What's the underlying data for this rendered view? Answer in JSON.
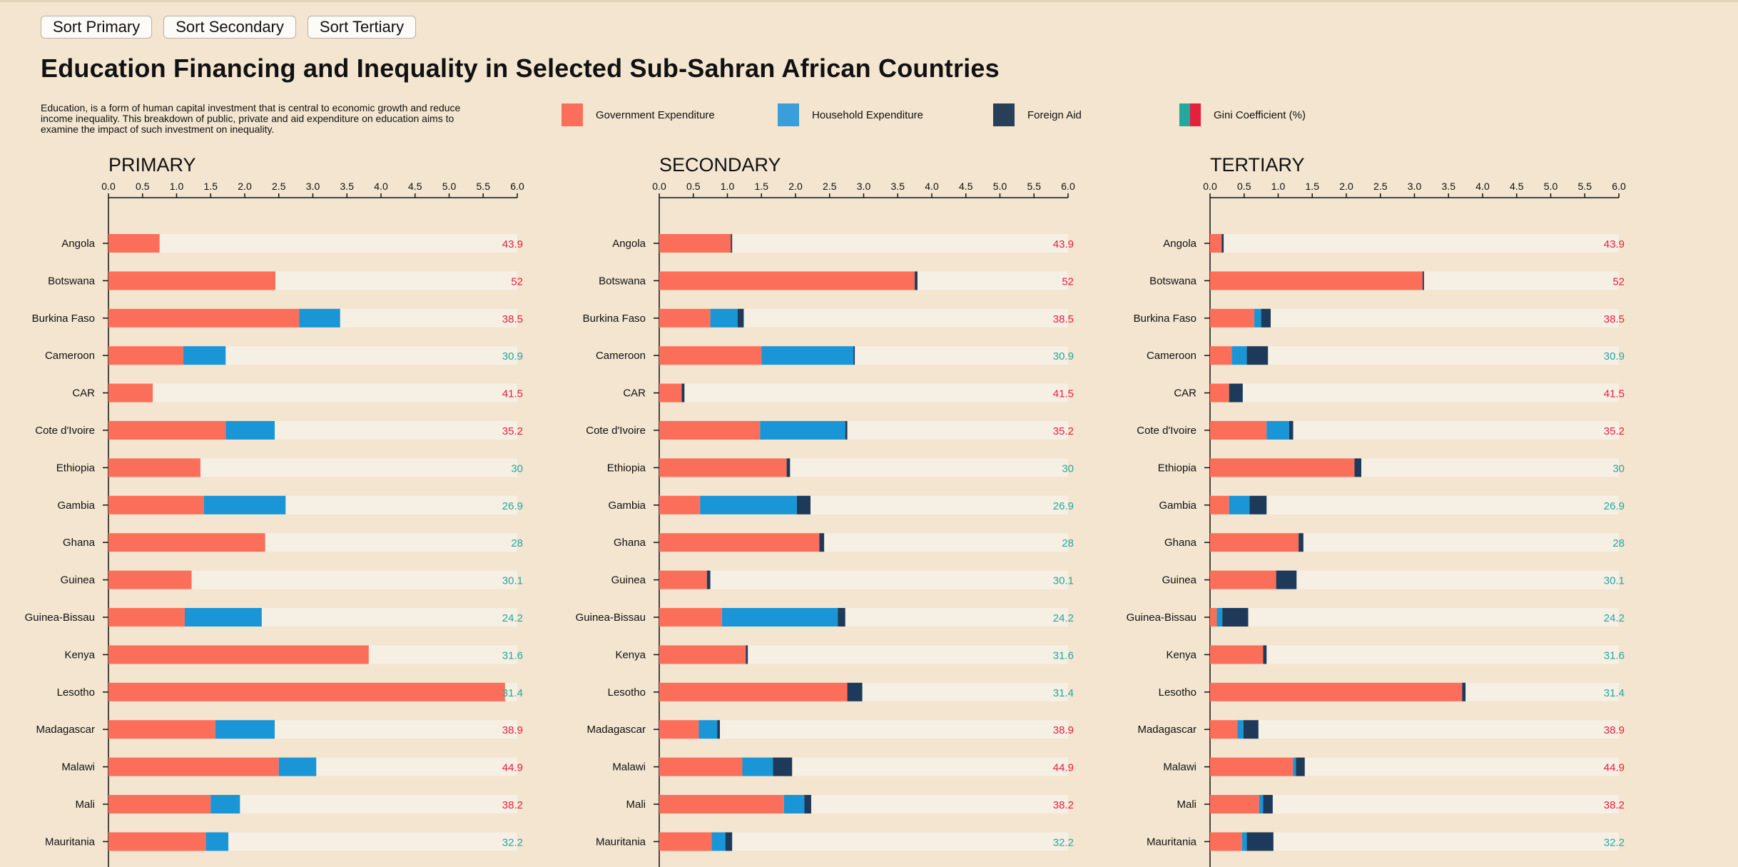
{
  "sort_buttons": {
    "primary": "Sort Primary",
    "secondary": "Sort Secondary",
    "tertiary": "Sort Tertiary"
  },
  "title": "Education Financing and Inequality in Selected Sub-Sahran African Countries",
  "description": "Education, is a form of human capital investment that is central to economic growth and reduce income inequality. This breakdown of public, private and aid expenditure on education aims to examine the impact of such investment on inequality.",
  "legend": [
    {
      "label": "Government Expenditure",
      "color": "#fb6f5a"
    },
    {
      "label": "Household Expenditure",
      "color": "#3a9edb"
    },
    {
      "label": "Foreign Aid",
      "color": "#283f58"
    },
    {
      "label": "Gini Coefficient (%)",
      "colors": [
        "#23a89e",
        "#e5203f"
      ]
    }
  ],
  "colors": {
    "government": "#fb6f5a",
    "household": "#1a95d6",
    "aid": "#1e3a5a",
    "track": "#f6efe3",
    "gini_high": "#e5203f",
    "gini_low": "#23a89e"
  },
  "chart_data": [
    {
      "type": "bar",
      "stacked": true,
      "orientation": "horizontal",
      "title": "PRIMARY",
      "xlim": [
        0,
        6
      ],
      "xticks": [
        "0.0",
        "0.5",
        "1.0",
        "1.5",
        "2.0",
        "2.5",
        "3.0",
        "3.5",
        "4.0",
        "4.5",
        "5.0",
        "5.5",
        "6.0"
      ],
      "categories": [
        "Angola",
        "Botswana",
        "Burkina Faso",
        "Cameroon",
        "CAR",
        "Cote d'Ivoire",
        "Ethiopia",
        "Gambia",
        "Ghana",
        "Guinea",
        "Guinea-Bissau",
        "Kenya",
        "Lesotho",
        "Madagascar",
        "Malawi",
        "Mali",
        "Mauritania"
      ],
      "series": [
        {
          "name": "Government Expenditure",
          "values": [
            0.75,
            2.45,
            2.8,
            1.1,
            0.65,
            1.72,
            1.35,
            1.4,
            2.3,
            1.22,
            1.12,
            3.82,
            5.82,
            1.57,
            2.5,
            1.5,
            1.43
          ]
        },
        {
          "name": "Household Expenditure",
          "values": [
            0,
            0,
            0.6,
            0.62,
            0,
            0.72,
            0,
            1.2,
            0,
            0,
            1.13,
            0,
            0,
            0.87,
            0.55,
            0.43,
            0.33
          ]
        },
        {
          "name": "Foreign Aid",
          "values": [
            0,
            0,
            0,
            0,
            0,
            0,
            0,
            0,
            0,
            0,
            0,
            0,
            0,
            0,
            0,
            0,
            0
          ]
        }
      ],
      "gini": [
        "43.9",
        "52",
        "38.5",
        "30.9",
        "41.5",
        "35.2",
        "30",
        "26.9",
        "28",
        "30.1",
        "24.2",
        "31.6",
        "31.4",
        "38.9",
        "44.9",
        "38.2",
        "32.2"
      ]
    },
    {
      "type": "bar",
      "stacked": true,
      "orientation": "horizontal",
      "title": "SECONDARY",
      "xlim": [
        0,
        6
      ],
      "xticks": [
        "0.0",
        "0.5",
        "1.0",
        "1.5",
        "2.0",
        "2.5",
        "3.0",
        "3.5",
        "4.0",
        "4.5",
        "5.0",
        "5.5",
        "6.0"
      ],
      "categories": [
        "Angola",
        "Botswana",
        "Burkina Faso",
        "Cameroon",
        "CAR",
        "Cote d'Ivoire",
        "Ethiopia",
        "Gambia",
        "Ghana",
        "Guinea",
        "Guinea-Bissau",
        "Kenya",
        "Lesotho",
        "Madagascar",
        "Malawi",
        "Mali",
        "Mauritania"
      ],
      "series": [
        {
          "name": "Government Expenditure",
          "values": [
            1.05,
            3.75,
            0.75,
            1.5,
            0.33,
            1.48,
            1.87,
            0.6,
            2.35,
            0.7,
            0.92,
            1.27,
            2.76,
            0.58,
            1.22,
            1.83,
            0.77
          ]
        },
        {
          "name": "Household Expenditure",
          "values": [
            0,
            0,
            0.4,
            1.35,
            0,
            1.25,
            0,
            1.42,
            0,
            0,
            1.7,
            0,
            0,
            0.27,
            0.45,
            0.3,
            0.2
          ]
        },
        {
          "name": "Foreign Aid",
          "values": [
            0.02,
            0.04,
            0.09,
            0.02,
            0.04,
            0.03,
            0.05,
            0.2,
            0.07,
            0.05,
            0.11,
            0.03,
            0.22,
            0.04,
            0.28,
            0.1,
            0.1
          ]
        }
      ],
      "gini": [
        "43.9",
        "52",
        "38.5",
        "30.9",
        "41.5",
        "35.2",
        "30",
        "26.9",
        "28",
        "30.1",
        "24.2",
        "31.6",
        "31.4",
        "38.9",
        "44.9",
        "38.2",
        "32.2"
      ]
    },
    {
      "type": "bar",
      "stacked": true,
      "orientation": "horizontal",
      "title": "TERTIARY",
      "xlim": [
        0,
        6
      ],
      "xticks": [
        "0.0",
        "0.5",
        "1.0",
        "1.5",
        "2.0",
        "2.5",
        "3.0",
        "3.5",
        "4.0",
        "4.5",
        "5.0",
        "5.5",
        "6.0"
      ],
      "categories": [
        "Angola",
        "Botswana",
        "Burkina Faso",
        "Cameroon",
        "CAR",
        "Cote d'Ivoire",
        "Ethiopia",
        "Gambia",
        "Ghana",
        "Guinea",
        "Guinea-Bissau",
        "Kenya",
        "Lesotho",
        "Madagascar",
        "Malawi",
        "Mali",
        "Mauritania"
      ],
      "series": [
        {
          "name": "Government Expenditure",
          "values": [
            0.17,
            3.12,
            0.65,
            0.32,
            0.28,
            0.83,
            2.12,
            0.28,
            1.3,
            0.97,
            0.1,
            0.78,
            3.7,
            0.4,
            1.22,
            0.72,
            0.47
          ]
        },
        {
          "name": "Household Expenditure",
          "values": [
            0,
            0,
            0.1,
            0.22,
            0,
            0.33,
            0,
            0.3,
            0,
            0,
            0.08,
            0,
            0,
            0.09,
            0.04,
            0.06,
            0.07
          ]
        },
        {
          "name": "Foreign Aid",
          "values": [
            0.03,
            0.02,
            0.14,
            0.31,
            0.2,
            0.06,
            0.1,
            0.25,
            0.07,
            0.3,
            0.38,
            0.05,
            0.05,
            0.22,
            0.13,
            0.14,
            0.39
          ]
        }
      ],
      "gini": [
        "43.9",
        "52",
        "38.5",
        "30.9",
        "41.5",
        "35.2",
        "30",
        "26.9",
        "28",
        "30.1",
        "24.2",
        "31.6",
        "31.4",
        "38.9",
        "44.9",
        "38.2",
        "32.2"
      ]
    }
  ]
}
